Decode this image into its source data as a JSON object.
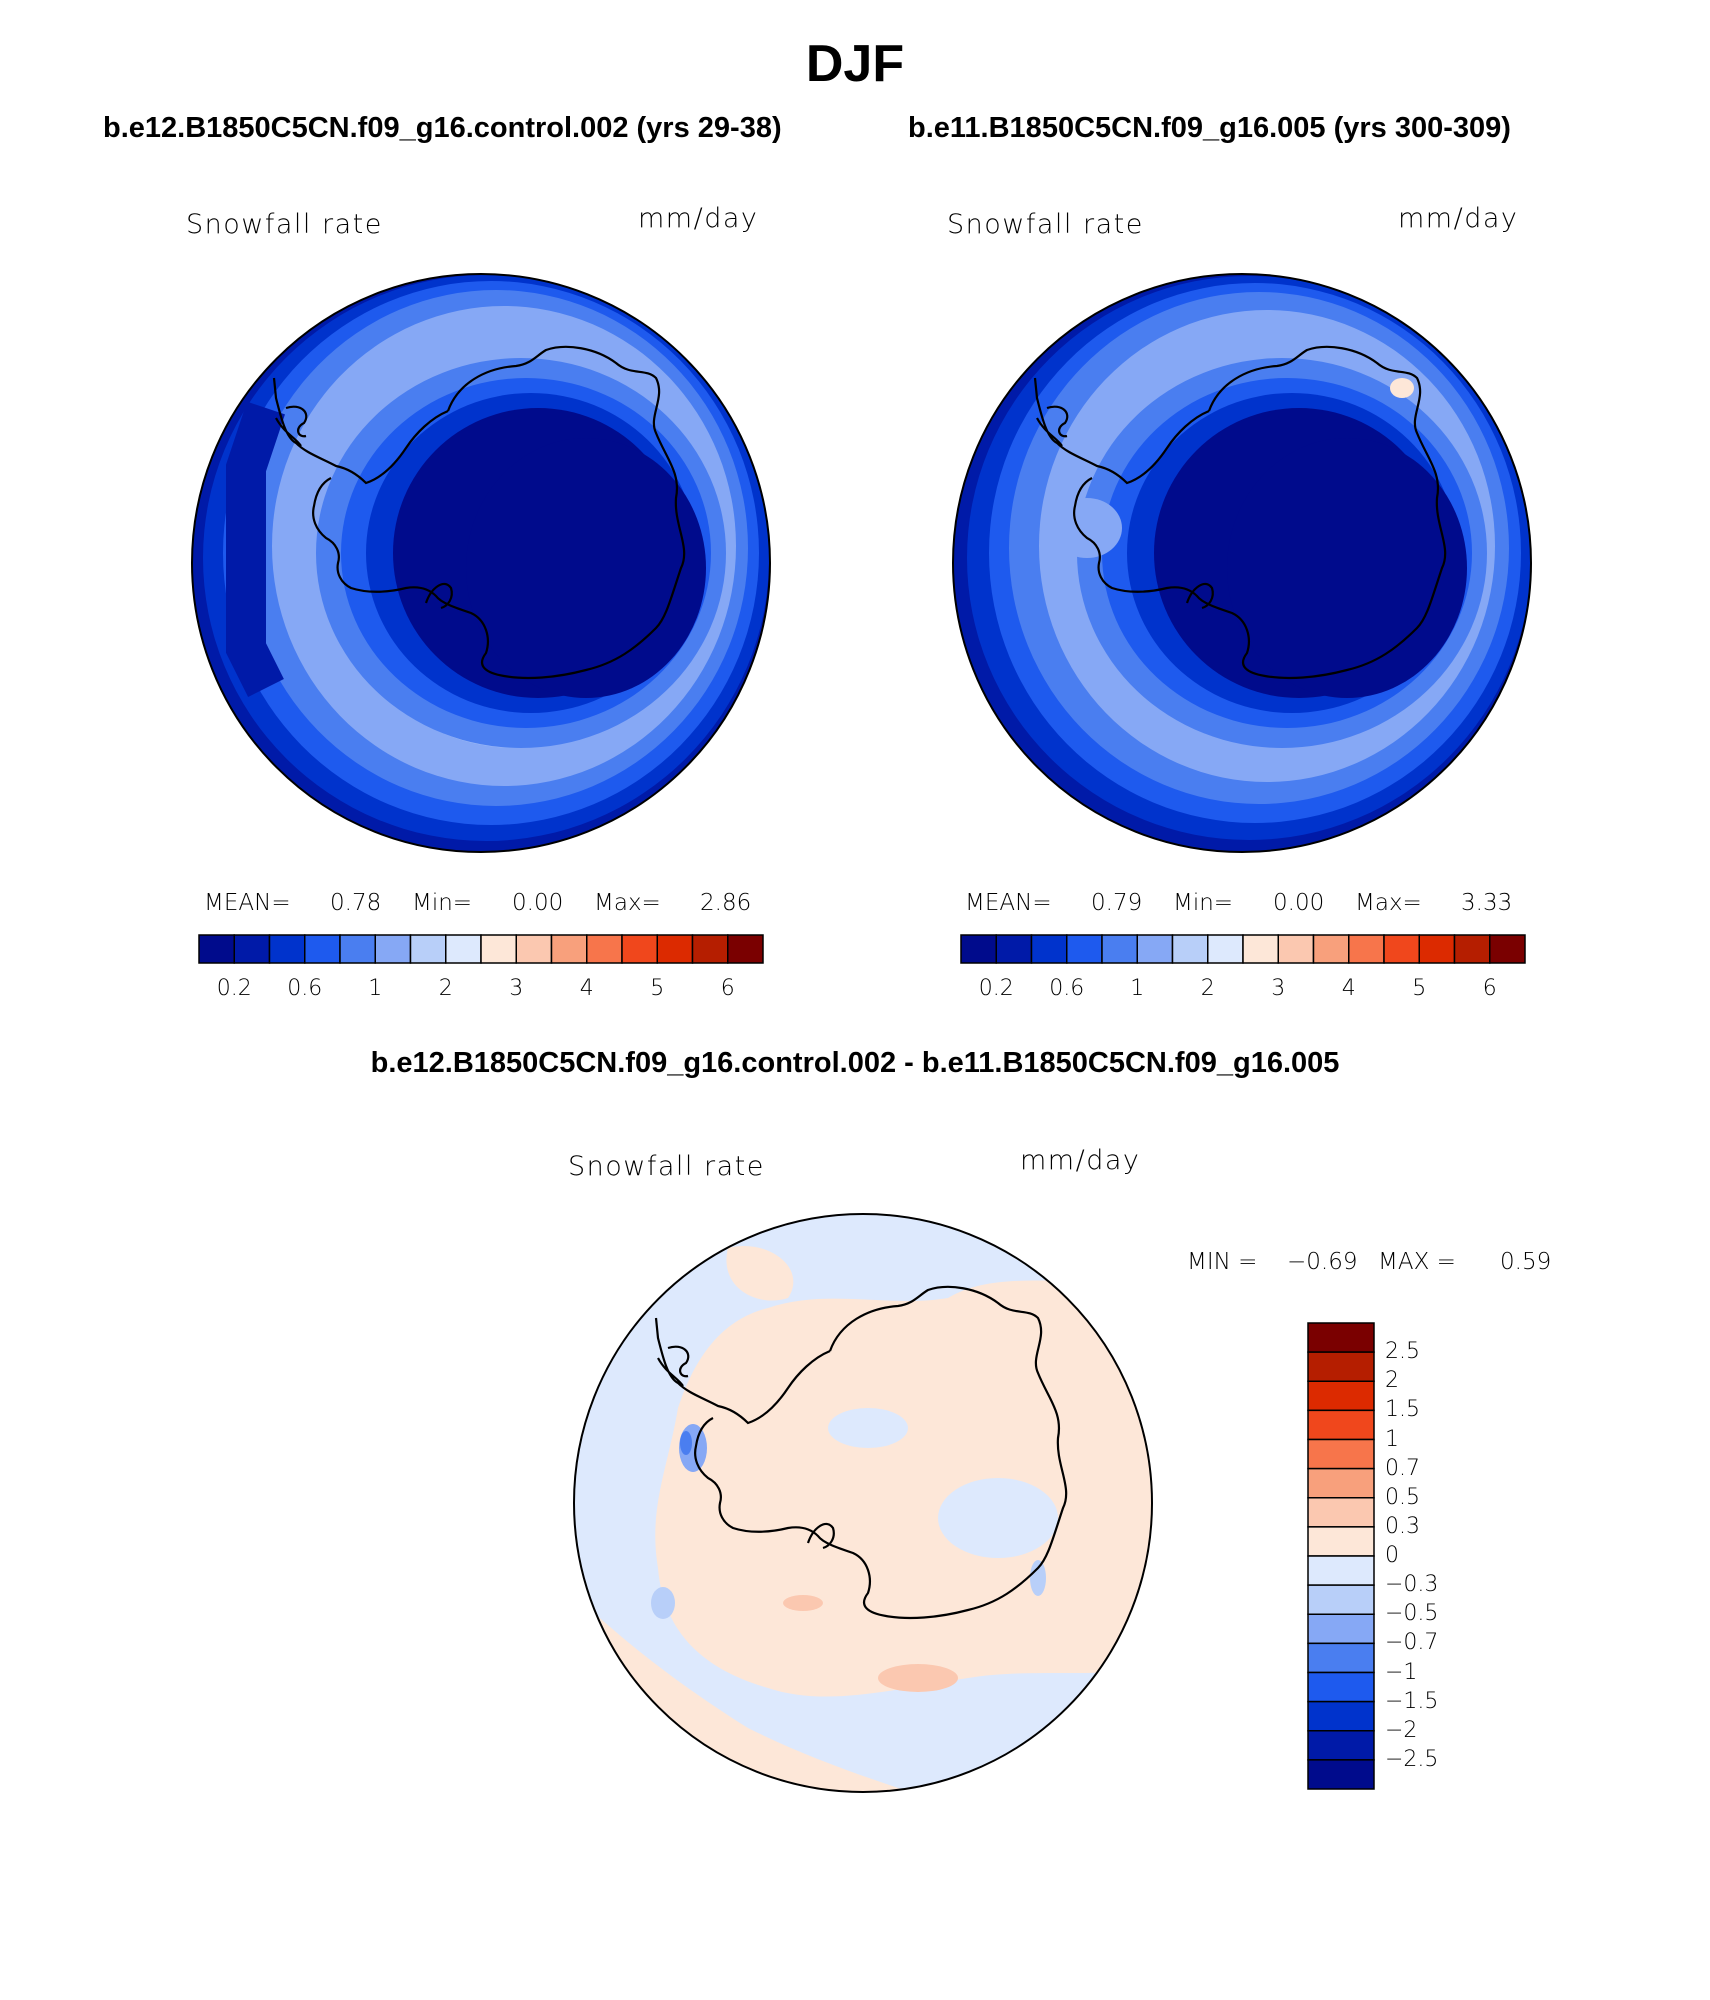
{
  "figure": {
    "title": "DJF",
    "left_case": "b.e12.B1850C5CN.f09_g16.control.002 (yrs 29-38)",
    "right_case": "b.e11.B1850C5CN.f09_g16.005 (yrs 300-309)",
    "diff_case": "b.e12.B1850C5CN.f09_g16.control.002 - b.e11.B1850C5CN.f09_g16.005"
  },
  "panels": {
    "left": {
      "variable": "Snowfall rate",
      "units": "mm/day",
      "mean_label": "MEAN=",
      "mean": "0.78",
      "min_label": "Min=",
      "min": "0.00",
      "max_label": "Max=",
      "max": "2.86"
    },
    "right": {
      "variable": "Snowfall rate",
      "units": "mm/day",
      "mean_label": "MEAN=",
      "mean": "0.79",
      "min_label": "Min=",
      "min": "0.00",
      "max_label": "Max=",
      "max": "3.33"
    },
    "diff": {
      "variable": "Snowfall rate",
      "units": "mm/day",
      "min_label": "MIN =",
      "min": "−0.69",
      "max_label": "MAX =",
      "max": "0.59"
    }
  },
  "colorbar_abs": {
    "colors": [
      "#000b8c",
      "#001aa8",
      "#0033cc",
      "#1e5aee",
      "#4a7ef0",
      "#86a8f5",
      "#b8cff9",
      "#dde9fd",
      "#fde7d8",
      "#fbc8b0",
      "#f8a07c",
      "#f7754b",
      "#f0471c",
      "#dc2a00",
      "#b51e00",
      "#7a0000"
    ],
    "tick_labels": [
      "0.2",
      "0.6",
      "1",
      "2",
      "3",
      "4",
      "5",
      "6"
    ]
  },
  "colorbar_diff": {
    "colors": [
      "#7a0000",
      "#b51e00",
      "#dc2a00",
      "#f0471c",
      "#f7754b",
      "#f8a07c",
      "#fbc8b0",
      "#fde7d8",
      "#dde9fd",
      "#b8cff9",
      "#86a8f5",
      "#4a7ef0",
      "#1e5aee",
      "#0033cc",
      "#001aa8",
      "#000b8c"
    ],
    "tick_labels": [
      "2.5",
      "2",
      "1.5",
      "1",
      "0.7",
      "0.5",
      "0.3",
      "0",
      "−0.3",
      "−0.5",
      "−0.7",
      "−1",
      "−1.5",
      "−2",
      "−2.5"
    ]
  }
}
